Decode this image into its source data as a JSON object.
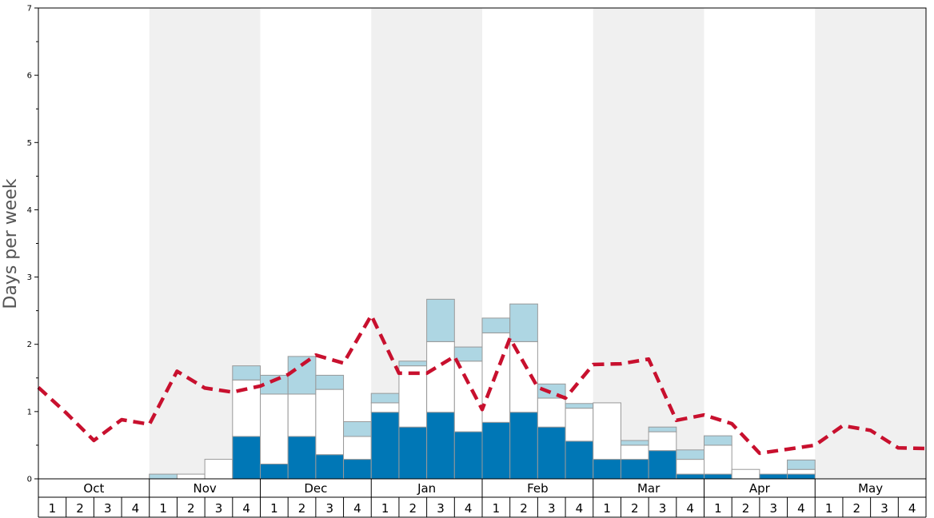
{
  "chart_data": {
    "type": "bar",
    "ylabel": "Days per week",
    "ylim": [
      0,
      7
    ],
    "yticks": [
      "0",
      "1",
      "2",
      "3",
      "4",
      "5",
      "6",
      "7"
    ],
    "months": [
      "Oct",
      "Nov",
      "Dec",
      "Jan",
      "Feb",
      "Mar",
      "Apr",
      "May"
    ],
    "week_labels": [
      "1",
      "2",
      "3",
      "4"
    ],
    "stacked": true,
    "grid": false,
    "series": [
      {
        "color": "#0077b6",
        "values": [
          0,
          0,
          0,
          0,
          0,
          0,
          0,
          0.63,
          0.22,
          0.63,
          0.36,
          0.29,
          0.99,
          0.77,
          0.99,
          0.7,
          0.84,
          0.99,
          0.77,
          0.56,
          0.29,
          0.29,
          0.42,
          0.07,
          0.07,
          0,
          0.07,
          0.07,
          0,
          0,
          0,
          0
        ]
      },
      {
        "color": "#ffffff",
        "values": [
          0,
          0,
          0,
          0,
          0,
          0.07,
          0.29,
          0.84,
          1.04,
          0.63,
          0.97,
          0.34,
          0.14,
          0.91,
          1.05,
          1.05,
          1.33,
          1.05,
          0.43,
          0.49,
          0.84,
          0.21,
          0.28,
          0.22,
          0.43,
          0.14,
          0,
          0.07,
          0,
          0,
          0,
          0
        ]
      },
      {
        "color": "#aed6e3",
        "values": [
          0,
          0,
          0,
          0,
          0.07,
          0,
          0,
          0.21,
          0.28,
          0.56,
          0.21,
          0.22,
          0.14,
          0.07,
          0.63,
          0.21,
          0.22,
          0.56,
          0.21,
          0.07,
          0,
          0.07,
          0.07,
          0.14,
          0.14,
          0,
          0,
          0.14,
          0,
          0,
          0,
          0
        ]
      }
    ],
    "average_line": {
      "color": "#c8102e",
      "style": "dashed",
      "values": [
        1.36,
        0.98,
        0.57,
        0.88,
        0.81,
        1.6,
        1.35,
        1.29,
        1.38,
        1.55,
        1.84,
        1.72,
        2.43,
        1.57,
        1.57,
        1.82,
        1.03,
        2.09,
        1.36,
        1.2,
        1.7,
        1.71,
        1.78,
        0.87,
        0.95,
        0.82,
        0.38,
        0.44,
        0.5,
        0.79,
        0.72,
        0.46,
        0.45
      ]
    },
    "background_bands": [
      "#ffffff",
      "#f0f0f0"
    ]
  }
}
